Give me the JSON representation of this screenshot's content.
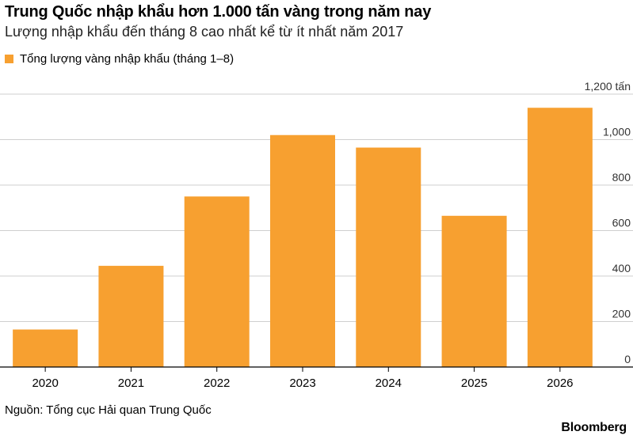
{
  "header": {
    "title": "Trung Quốc nhập khẩu hơn 1.000 tấn vàng trong năm nay",
    "subtitle": "Lượng nhập khẩu đến tháng 8 cao nhất kể từ ít nhất năm 2017"
  },
  "legend": {
    "label": "Tổng lượng vàng nhập khẩu (tháng 1–8)",
    "color": "#F7A030"
  },
  "chart_data": {
    "type": "bar",
    "categories": [
      "2020",
      "2021",
      "2022",
      "2023",
      "2024",
      "2025",
      "2026"
    ],
    "series": [
      {
        "name": "Tổng lượng vàng nhập khẩu (tháng 1–8)",
        "values": [
          165,
          445,
          750,
          1020,
          965,
          665,
          1140
        ],
        "color": "#F7A030"
      }
    ],
    "ylim": [
      0,
      1200
    ],
    "y_ticks": [
      0,
      200,
      400,
      600,
      800,
      1000,
      1200
    ],
    "y_tick_labels": [
      "0",
      "200",
      "400",
      "600",
      "800",
      "1,000",
      "1,200 tấn"
    ],
    "y_axis_side": "right",
    "grid": true,
    "legend_position": "top-left"
  },
  "footer": {
    "source": "Nguồn: Tổng cục Hải quan Trung Quốc",
    "brand": "Bloomberg"
  }
}
